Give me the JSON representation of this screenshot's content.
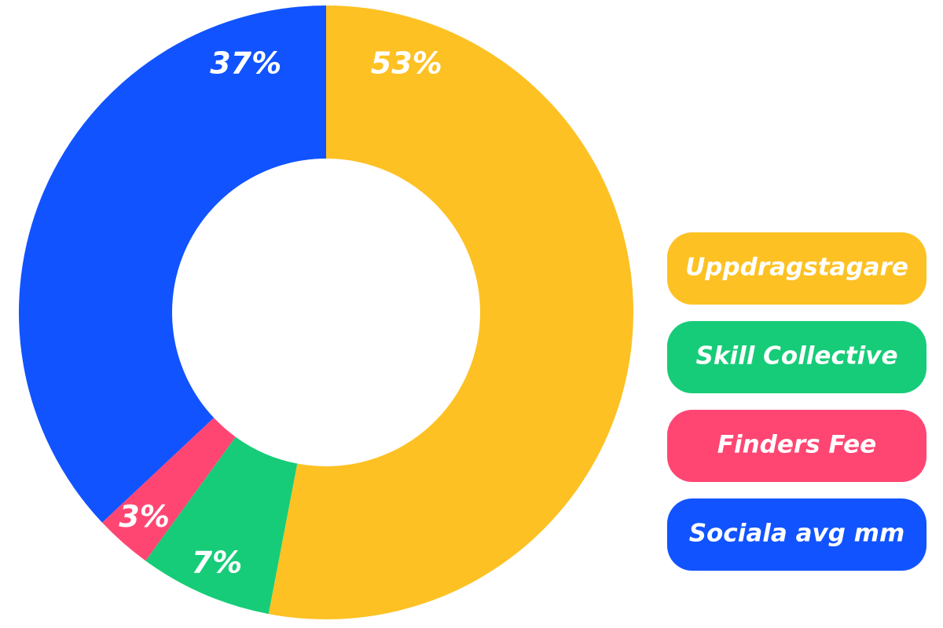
{
  "chart_data": {
    "type": "pie",
    "categories": [
      "Uppdragstagare",
      "Skill Collective",
      "Finders Fee",
      "Sociala avg mm"
    ],
    "values": [
      53,
      7,
      3,
      37
    ],
    "value_labels": [
      "53%",
      "7%",
      "3%",
      "37%"
    ],
    "colors": [
      "#fdc123",
      "#16cc78",
      "#ff4673",
      "#1153ff"
    ]
  }
}
